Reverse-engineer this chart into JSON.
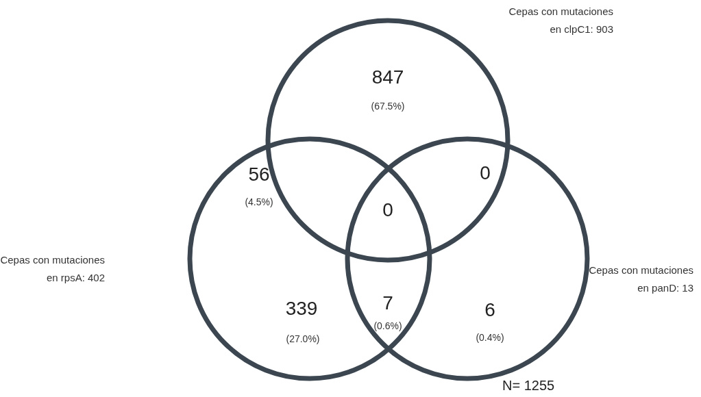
{
  "chart_data": {
    "type": "other",
    "color": "#3b4650",
    "categories": [
      null,
      null,
      null,
      null,
      null,
      null,
      null
    ],
    "values": [
      847,
      56,
      0,
      0,
      339,
      7,
      6
    ],
    "data_labels": true,
    "annotations": [
      "Cepas con mutaciones\nen clpC1: 903",
      "Cepas con mutaciones\nen rpsA: 402",
      "Cepas con mutaciones\nen panD: 13",
      "N= 1255",
      "(67.5%)",
      "(4.5%)",
      "(27.0%)",
      "(0.6%)",
      "(0.4%)"
    ]
  }
}
